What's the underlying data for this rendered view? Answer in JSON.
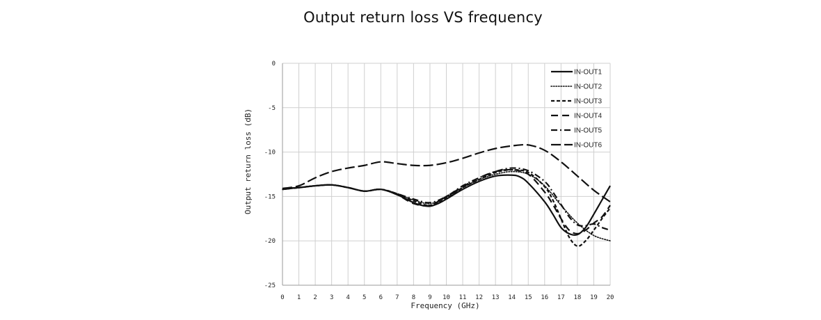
{
  "chart_data": {
    "type": "line",
    "title": "Output return loss VS frequency",
    "xlabel": "Frequency (GHz)",
    "ylabel": "Output return loss (dB)",
    "xlim": [
      0,
      20
    ],
    "ylim": [
      -25,
      0
    ],
    "xticks": [
      "0",
      "1",
      "2",
      "3",
      "4",
      "5",
      "6",
      "7",
      "8",
      "9",
      "10",
      "11",
      "12",
      "13",
      "14",
      "15",
      "16",
      "17",
      "18",
      "19",
      "20"
    ],
    "yticks": [
      "0",
      "-5",
      "-10",
      "-15",
      "-20",
      "-25"
    ],
    "grid": true,
    "legend_position": "top-right",
    "series": [
      {
        "name": "IN-OUT1",
        "style": "solid",
        "x": [
          0,
          1,
          2,
          3,
          4,
          5,
          6,
          7,
          8,
          8.5,
          9,
          9.5,
          10,
          11,
          12,
          13,
          14,
          14.5,
          15,
          16,
          16.5,
          17,
          17.5,
          18,
          18.5,
          19,
          19.5,
          20
        ],
        "y": [
          -14.1,
          -14,
          -13.8,
          -13.7,
          -14,
          -14.4,
          -14.2,
          -14.8,
          -15.7,
          -16,
          -16.1,
          -15.8,
          -15.3,
          -14.2,
          -13.3,
          -12.7,
          -12.6,
          -12.8,
          -13.5,
          -15.6,
          -17,
          -18.5,
          -19.2,
          -19.3,
          -18.5,
          -17,
          -15.4,
          -13.8
        ]
      },
      {
        "name": "IN-OUT2",
        "style": "dotted",
        "x": [
          0,
          1,
          2,
          3,
          4,
          5,
          6,
          7,
          8,
          9,
          10,
          11,
          12,
          13,
          14,
          15,
          16,
          17,
          18,
          19,
          20
        ],
        "y": [
          -14.2,
          -14,
          -13.8,
          -13.7,
          -14,
          -14.4,
          -14.2,
          -14.7,
          -15.4,
          -15.8,
          -15.1,
          -14,
          -13.1,
          -12.5,
          -12.2,
          -12.5,
          -13.8,
          -16,
          -18,
          -19.4,
          -20
        ]
      },
      {
        "name": "IN-OUT3",
        "style": "short-dash",
        "x": [
          0,
          1,
          2,
          3,
          4,
          5,
          6,
          7,
          8,
          9,
          10,
          11,
          12,
          13,
          14,
          15,
          16,
          16.5,
          17,
          17.5,
          18,
          18.5,
          19,
          19.5,
          20
        ],
        "y": [
          -14.2,
          -14,
          -13.8,
          -13.7,
          -14,
          -14.4,
          -14.2,
          -14.7,
          -15.5,
          -16,
          -15.2,
          -14,
          -13.1,
          -12.3,
          -12,
          -12.3,
          -13.9,
          -15.4,
          -17.5,
          -19.6,
          -20.6,
          -20,
          -18.8,
          -17.5,
          -16.3
        ]
      },
      {
        "name": "IN-OUT4",
        "style": "long-dash",
        "x": [
          0,
          1,
          2,
          3,
          4,
          5,
          6,
          7,
          8,
          9,
          10,
          11,
          12,
          13,
          14,
          15,
          16,
          16.5,
          17,
          17.5,
          18,
          18.5,
          19,
          19.5,
          20
        ],
        "y": [
          -14.2,
          -14,
          -13.8,
          -13.7,
          -14,
          -14.4,
          -14.2,
          -14.8,
          -15.8,
          -16,
          -15,
          -13.9,
          -12.9,
          -12.2,
          -12,
          -12.5,
          -14.5,
          -15.9,
          -17.5,
          -18.8,
          -19.2,
          -18.8,
          -18,
          -17.3,
          -16
        ]
      },
      {
        "name": "IN-OUT5",
        "style": "dash-dot",
        "x": [
          0,
          1,
          2,
          3,
          4,
          5,
          6,
          7,
          8,
          9,
          10,
          11,
          12,
          13,
          14,
          15,
          16,
          16.5,
          17,
          17.5,
          18,
          18.5,
          19,
          19.5,
          20
        ],
        "y": [
          -14.2,
          -14,
          -13.8,
          -13.7,
          -14,
          -14.4,
          -14.2,
          -14.7,
          -15.3,
          -15.7,
          -15,
          -13.8,
          -12.9,
          -12.2,
          -11.8,
          -12.1,
          -13.3,
          -14.5,
          -15.9,
          -17.3,
          -18.2,
          -18.3,
          -18.1,
          -18.5,
          -18.8
        ]
      },
      {
        "name": "IN-OUT6",
        "style": "long-dash-wide",
        "x": [
          0,
          1,
          2,
          3,
          4,
          5,
          6,
          7,
          8,
          9,
          10,
          11,
          12,
          13,
          14,
          15,
          16,
          17,
          18,
          19,
          20
        ],
        "y": [
          -14.1,
          -13.8,
          -12.9,
          -12.2,
          -11.8,
          -11.5,
          -11.1,
          -11.3,
          -11.5,
          -11.5,
          -11.2,
          -10.7,
          -10.1,
          -9.6,
          -9.3,
          -9.2,
          -9.8,
          -11.1,
          -12.7,
          -14.3,
          -15.6
        ]
      }
    ]
  }
}
